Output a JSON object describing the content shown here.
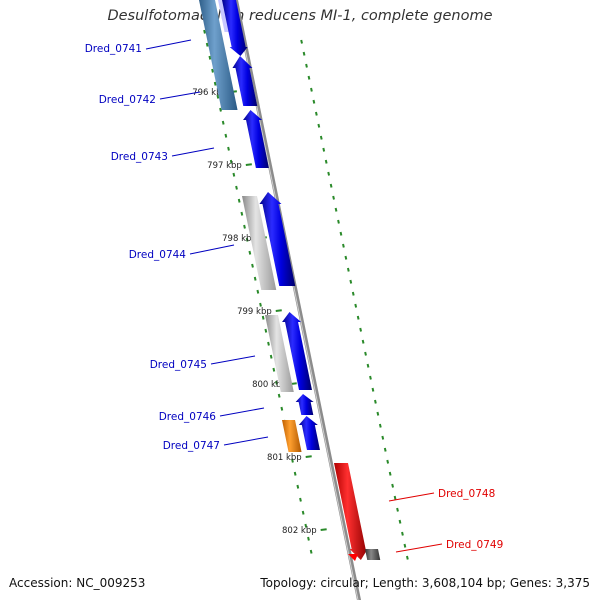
{
  "title": "Desulfotomaculum reducens MI-1, complete genome",
  "footer": {
    "accession": "Accession: NC_009253",
    "topology": "Topology: circular; Length: 3,608,104 bp; Genes: 3,375"
  },
  "colors": {
    "forward_gene": "#0000e6",
    "rna_gene": "#ff0000",
    "other_gene": "#ff8c00",
    "homolog_blue": "#4682b4",
    "homolog_grey": "#bdbdbd",
    "backbone": "#8c8c8c",
    "tick": "#2a8a2a",
    "label_blue": "#0000c0",
    "label_red": "#e00000"
  },
  "scale_ticks": [
    "796 kbp",
    "797 kbp",
    "798 kbp",
    "799 kbp",
    "800 kbp",
    "801 kbp",
    "802 kbp"
  ],
  "genes": [
    {
      "id": "Dred_0741",
      "label_color": "blue"
    },
    {
      "id": "Dred_0742",
      "label_color": "blue"
    },
    {
      "id": "Dred_0743",
      "label_color": "blue"
    },
    {
      "id": "Dred_0744",
      "label_color": "blue"
    },
    {
      "id": "Dred_0745",
      "label_color": "blue"
    },
    {
      "id": "Dred_0746",
      "label_color": "blue"
    },
    {
      "id": "Dred_0747",
      "label_color": "blue"
    },
    {
      "id": "Dred_0748",
      "label_color": "red"
    },
    {
      "id": "Dred_0749",
      "label_color": "red"
    }
  ]
}
